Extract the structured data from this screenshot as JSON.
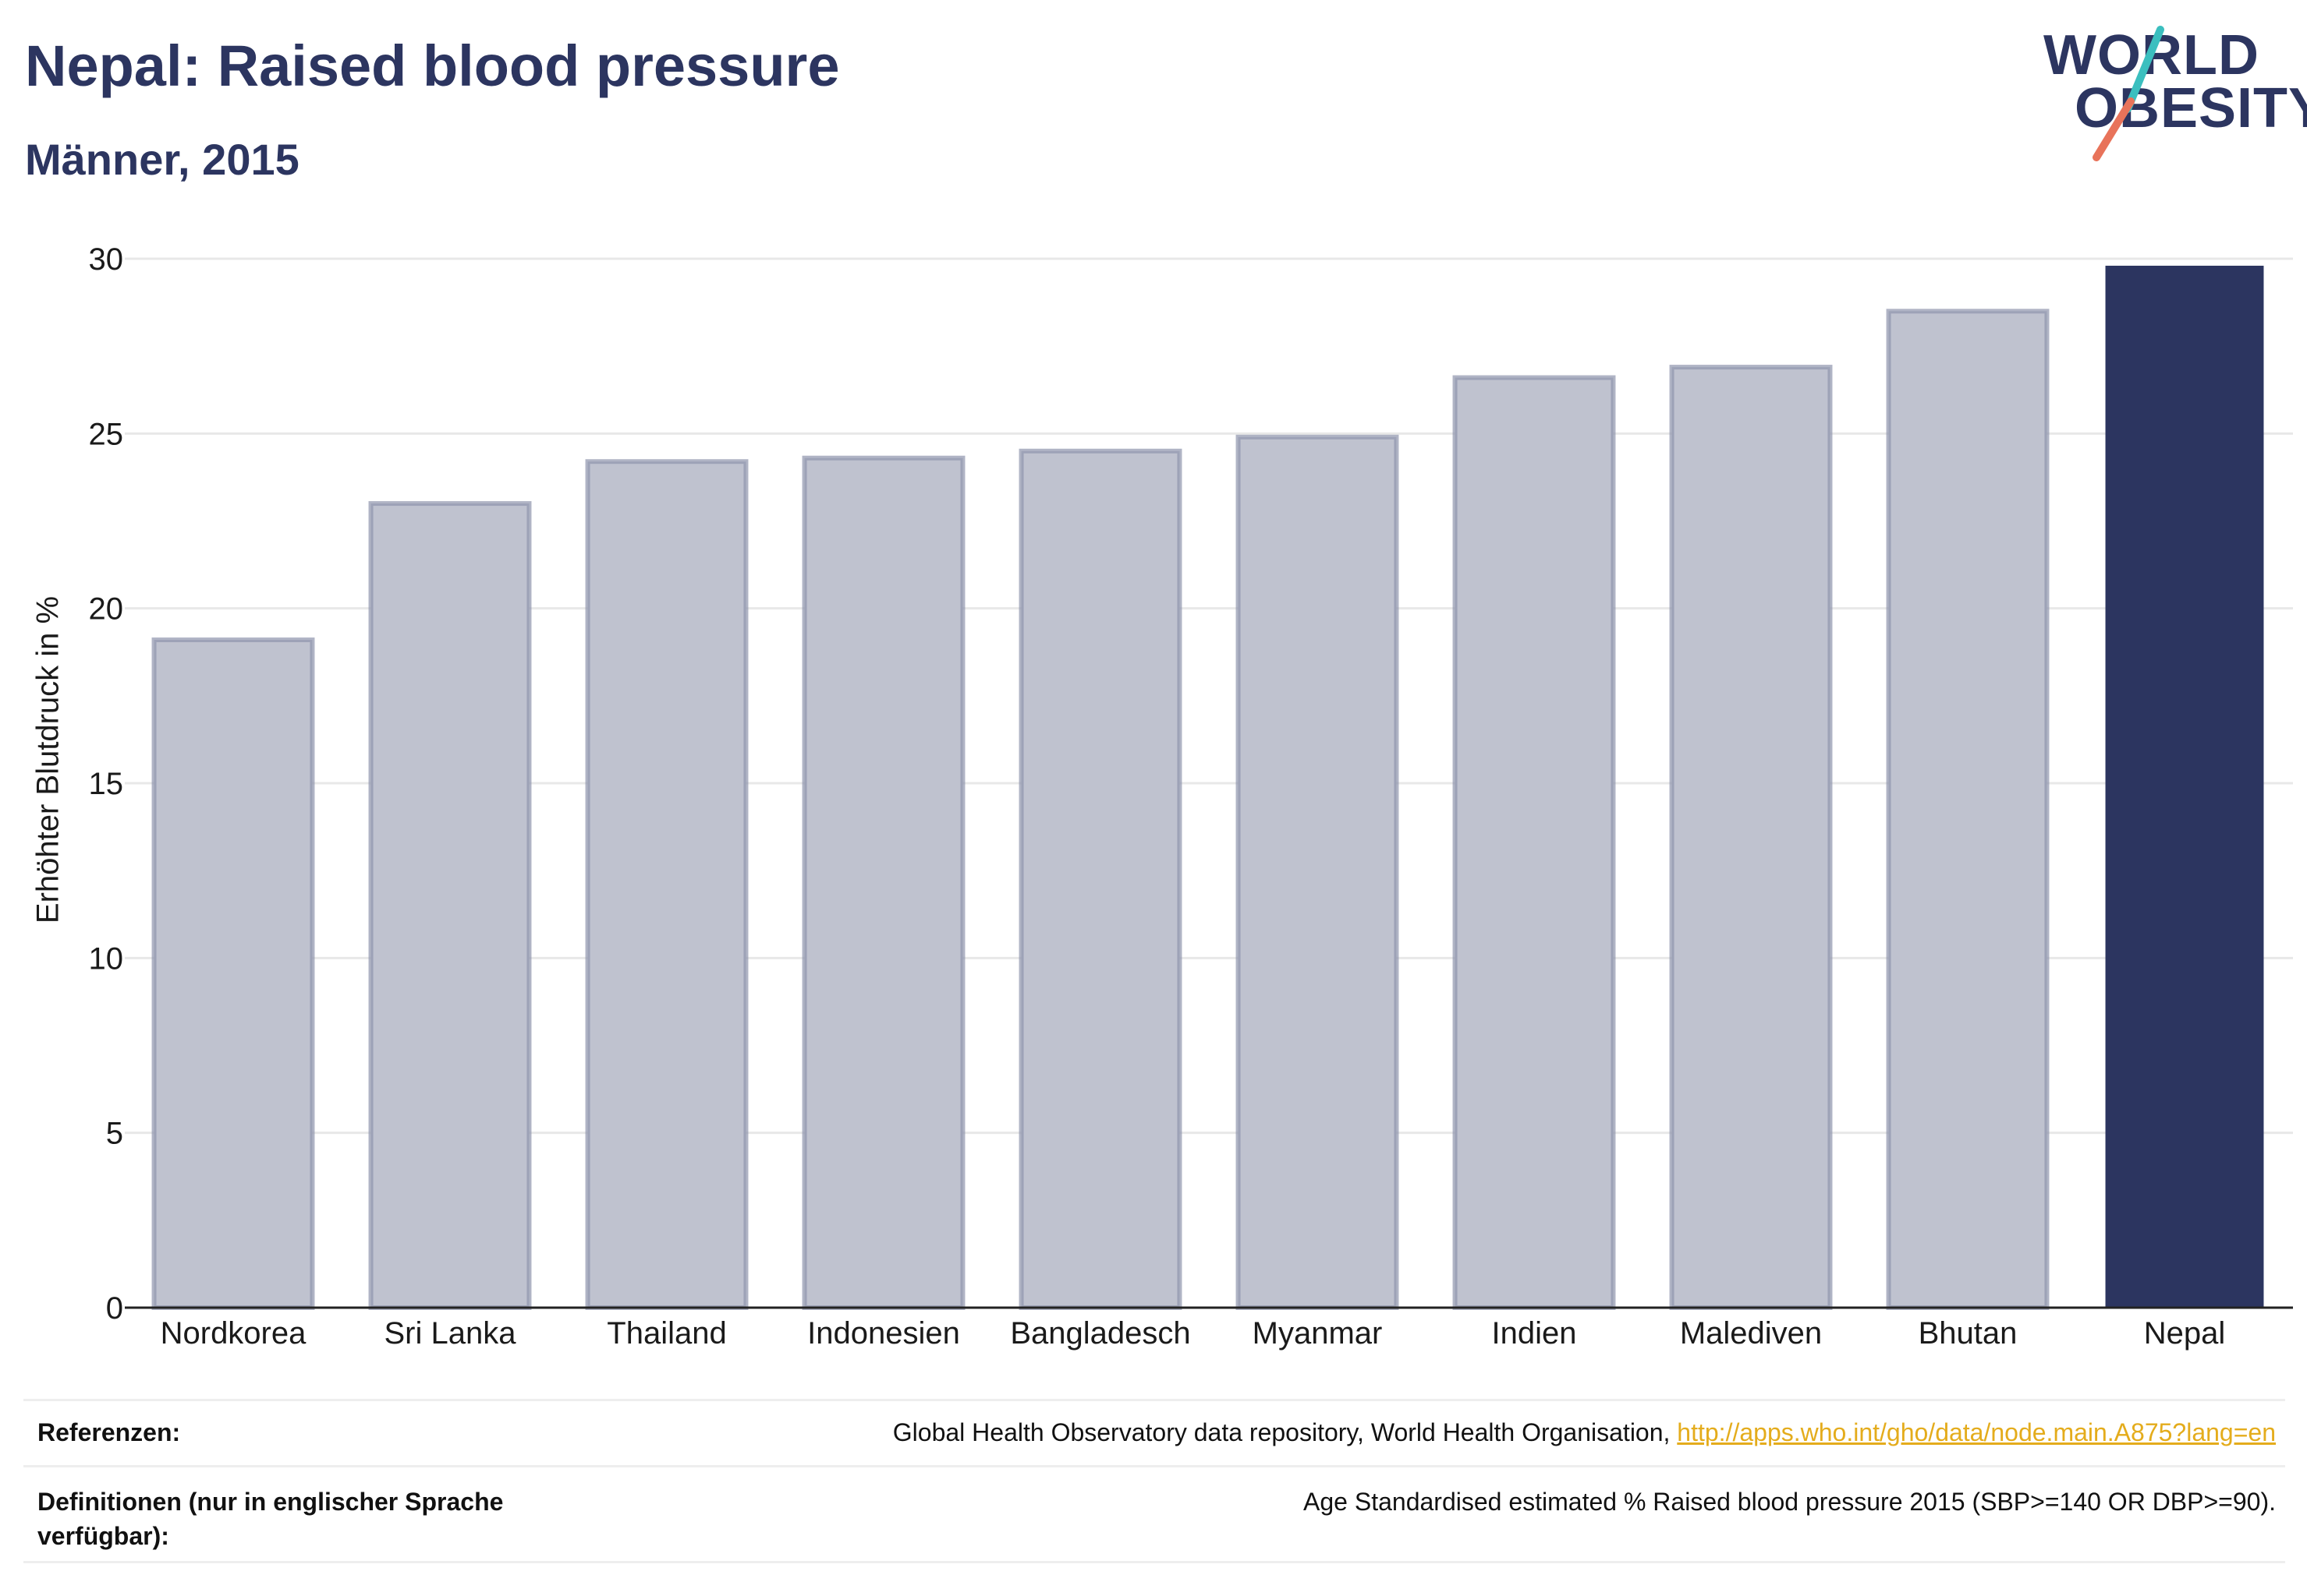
{
  "header": {
    "title": "Nepal: Raised blood pressure",
    "subtitle": "Männer, 2015"
  },
  "logo": {
    "line1": "WORLD",
    "line2": "OBESITY",
    "slash_colors": [
      "#3bbfbf",
      "#e8735a"
    ]
  },
  "colors": {
    "highlight": "#2c3560",
    "bar_fill": "#bfc2cf",
    "bar_stroke": "#8e94ad",
    "grid": "#e8e8e8",
    "link": "#e4ac1c"
  },
  "chart_data": {
    "type": "bar",
    "title": "Nepal: Raised blood pressure",
    "subtitle": "Männer, 2015",
    "xlabel": "",
    "ylabel": "Erhöhter Blutdruck in %",
    "ylim": [
      0,
      30
    ],
    "yticks": [
      0,
      5,
      10,
      15,
      20,
      25,
      30
    ],
    "grid": true,
    "categories": [
      "Nordkorea",
      "Sri Lanka",
      "Thailand",
      "Indonesien",
      "Bangladesch",
      "Myanmar",
      "Indien",
      "Malediven",
      "Bhutan",
      "Nepal"
    ],
    "values": [
      19.1,
      23.0,
      24.2,
      24.3,
      24.5,
      24.9,
      26.6,
      26.9,
      28.5,
      29.8
    ],
    "highlight": "Nepal"
  },
  "footer": {
    "references_label": "Referenzen:",
    "references_text": "Global Health Observatory data repository, World Health Organisation, ",
    "references_link": "http://apps.who.int/gho/data/node.main.A875?lang=en",
    "definitions_label": "Definitionen (nur in englischer Sprache verfügbar):",
    "definitions_text": "Age Standardised estimated % Raised blood pressure 2015 (SBP>=140 OR DBP>=90)."
  }
}
